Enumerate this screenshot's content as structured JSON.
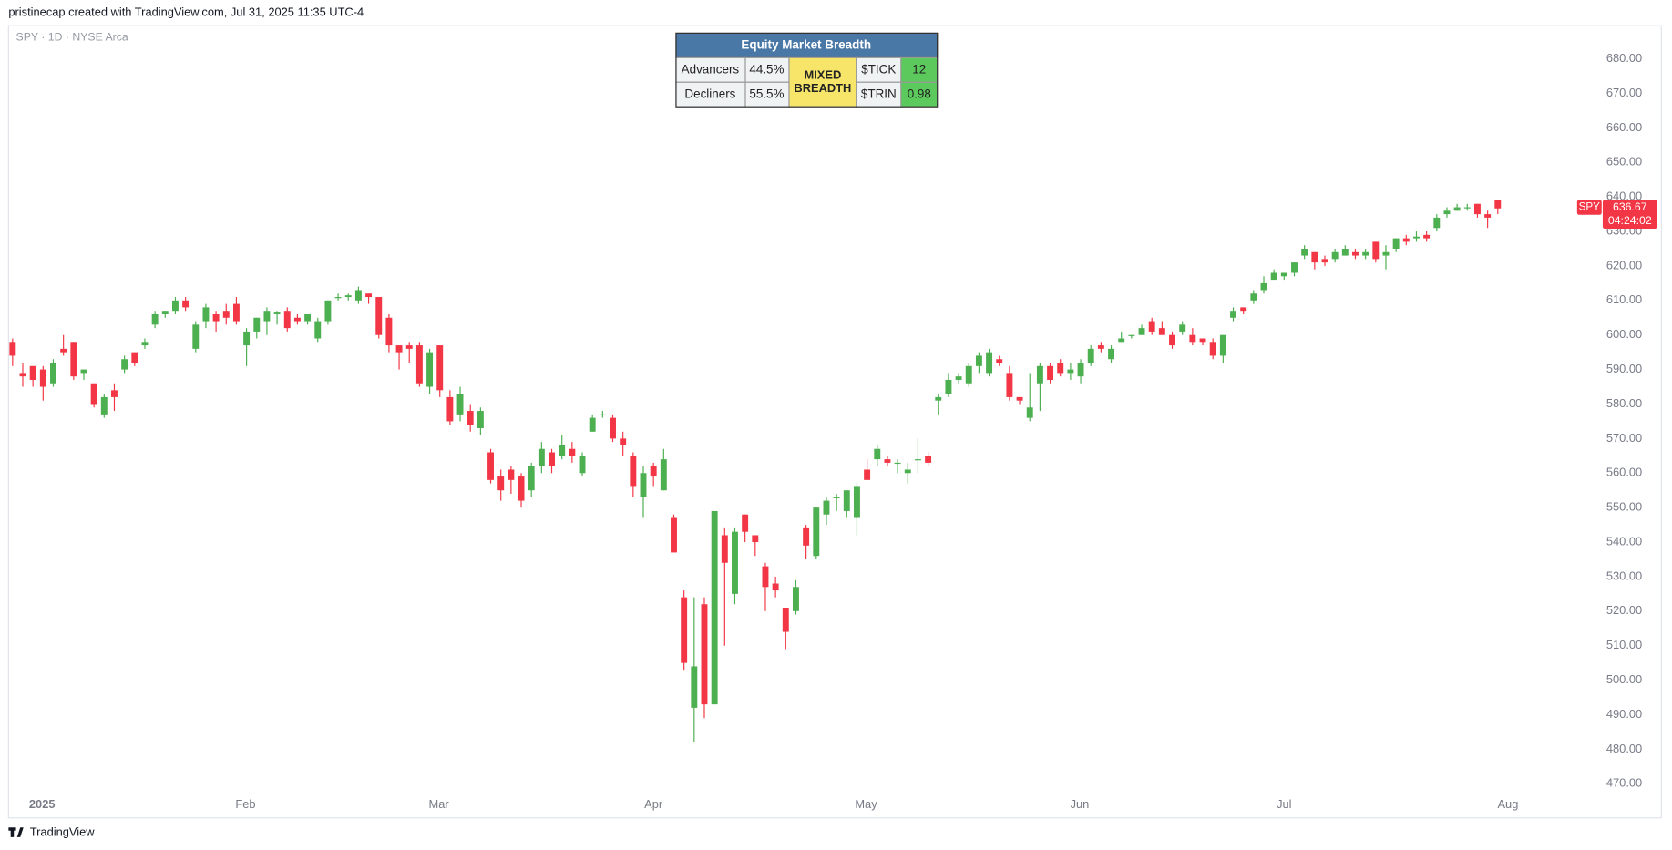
{
  "header": "pristinecap created with TradingView.com, Jul 31, 2025 11:35 UTC-4",
  "footer": "TradingView",
  "chart_data": {
    "type": "candlestick",
    "title": "SPY · 1D · NYSE Arca",
    "series": [
      {
        "name": "SPY",
        "up_color": "#4caf50",
        "down_color": "#f23645",
        "open": [
          598,
          589,
          591,
          590,
          586,
          596,
          598,
          589,
          586,
          577,
          584,
          590,
          595,
          597,
          603,
          606,
          607,
          610,
          596,
          604,
          606,
          607,
          609,
          597,
          601,
          604,
          606,
          607,
          605,
          604,
          599,
          604,
          611,
          611,
          610,
          612,
          611,
          605,
          597,
          597,
          597,
          585,
          597,
          582,
          577,
          578,
          573,
          566,
          559,
          561,
          559,
          555,
          562,
          566,
          565,
          567,
          560,
          572,
          577,
          576,
          570,
          565,
          553,
          562,
          555,
          547,
          524,
          492,
          522,
          493,
          542,
          525,
          548,
          542,
          533,
          528,
          521,
          520,
          544,
          536,
          548,
          553,
          549,
          547,
          561,
          564,
          564,
          563,
          560,
          564,
          565,
          581,
          583,
          587,
          586,
          591,
          589,
          593,
          589,
          582,
          576,
          586,
          591,
          592,
          589,
          588,
          592,
          597,
          593,
          598,
          600,
          600,
          604,
          602,
          600,
          601,
          600,
          599,
          598,
          594,
          605,
          608,
          610,
          613,
          616,
          617,
          618,
          623,
          624,
          622,
          622,
          623,
          624,
          623,
          627,
          623,
          625,
          628,
          628,
          629,
          631,
          635,
          636,
          637,
          638,
          635,
          639
        ],
        "high": [
          599,
          592,
          591,
          591,
          593,
          600,
          598,
          590,
          586,
          583,
          586,
          594,
          595,
          599,
          607,
          607,
          611,
          611,
          604,
          609,
          607,
          609,
          611,
          602,
          605,
          608,
          607,
          608,
          606,
          606,
          605,
          610,
          612,
          612,
          614,
          612,
          611,
          606,
          597,
          598,
          598,
          596,
          597,
          584,
          585,
          580,
          579,
          567,
          561,
          562,
          560,
          563,
          569,
          567,
          571,
          569,
          566,
          577,
          578,
          577,
          572,
          566,
          562,
          563,
          567,
          548,
          526,
          524,
          524,
          549,
          544,
          544,
          548,
          542,
          534,
          530,
          521,
          529,
          545,
          550,
          553,
          554,
          555,
          557,
          564,
          568,
          565,
          564,
          563,
          570,
          566,
          583,
          589,
          589,
          592,
          595,
          596,
          594,
          591,
          582,
          589,
          592,
          592,
          593,
          592,
          593,
          597,
          598,
          597,
          601,
          600,
          603,
          605,
          604,
          601,
          604,
          602,
          599,
          599,
          600,
          608,
          608,
          613,
          617,
          619,
          618,
          621,
          626,
          624,
          623,
          625,
          626,
          625,
          625,
          627,
          626,
          628,
          629,
          630,
          630,
          635,
          637,
          638,
          638,
          638,
          636,
          639
        ],
        "low": [
          591,
          585,
          585,
          581,
          585,
          594,
          587,
          587,
          579,
          576,
          578,
          589,
          591,
          596,
          602,
          605,
          606,
          607,
          595,
          602,
          601,
          603,
          603,
          591,
          599,
          600,
          603,
          601,
          603,
          603,
          598,
          603,
          610,
          610,
          609,
          609,
          599,
          595,
          590,
          592,
          585,
          583,
          582,
          574,
          575,
          572,
          571,
          557,
          552,
          554,
          550,
          553,
          560,
          560,
          564,
          563,
          559,
          572,
          576,
          569,
          565,
          553,
          547,
          556,
          555,
          537,
          503,
          482,
          489,
          493,
          510,
          522,
          540,
          536,
          520,
          524,
          509,
          519,
          535,
          535,
          545,
          549,
          547,
          542,
          558,
          562,
          562,
          560,
          557,
          560,
          562,
          577,
          582,
          586,
          585,
          589,
          588,
          591,
          581,
          580,
          575,
          578,
          586,
          588,
          587,
          586,
          591,
          595,
          592,
          598,
          599,
          600,
          600,
          600,
          596,
          600,
          597,
          597,
          593,
          592,
          604,
          606,
          609,
          612,
          617,
          616,
          617,
          622,
          619,
          620,
          621,
          623,
          622,
          622,
          621,
          619,
          624,
          626,
          627,
          627,
          630,
          634,
          636,
          636,
          634,
          631,
          635
        ],
        "close": [
          594,
          588,
          587,
          585,
          592,
          595,
          588,
          590,
          580,
          582,
          582,
          593,
          592,
          598,
          606,
          607,
          610,
          608,
          603,
          608,
          604,
          605,
          604,
          601,
          605,
          607,
          606.5,
          602,
          604,
          606,
          604,
          610,
          611,
          611.5,
          613,
          611,
          600,
          597,
          595,
          596,
          586,
          595,
          584,
          575,
          583,
          574,
          578,
          558,
          555,
          558,
          552,
          562,
          567,
          562,
          568,
          565,
          565,
          576,
          577,
          570,
          568,
          556,
          560,
          559,
          564,
          537,
          505,
          504,
          493,
          549,
          534,
          543,
          543,
          540,
          527,
          526,
          514,
          527,
          539,
          550,
          552,
          553,
          555,
          556,
          558,
          567,
          563,
          563,
          561,
          564,
          563,
          582,
          587,
          588,
          591,
          594,
          595,
          592,
          582,
          581,
          579,
          591,
          587,
          589,
          590,
          592,
          596,
          596,
          596,
          599,
          600,
          602,
          601,
          600,
          597,
          603,
          598,
          598,
          594,
          600,
          607,
          607,
          612,
          615,
          618,
          618,
          621,
          625,
          621,
          621,
          624,
          625,
          623,
          624,
          622,
          624,
          628,
          627,
          628.5,
          628,
          634,
          636,
          637,
          637,
          635,
          634,
          636.67
        ]
      }
    ],
    "xlim": [
      -0.4,
      156
    ],
    "xticks": [
      {
        "value": 2.9,
        "label": "2025"
      },
      {
        "value": 22.9,
        "label": "Feb"
      },
      {
        "value": 41.9,
        "label": "Mar"
      },
      {
        "value": 63,
        "label": "Apr"
      },
      {
        "value": 83.9,
        "label": "May"
      },
      {
        "value": 104.9,
        "label": "Jun"
      },
      {
        "value": 125,
        "label": "Jul"
      },
      {
        "value": 147,
        "label": "Aug"
      }
    ],
    "ylim": [
      466.9,
      689.6
    ],
    "yticks": [
      {
        "value": 470,
        "label": "470.00"
      },
      {
        "value": 480,
        "label": "480.00"
      },
      {
        "value": 490,
        "label": "490.00"
      },
      {
        "value": 500,
        "label": "500.00"
      },
      {
        "value": 510,
        "label": "510.00"
      },
      {
        "value": 520,
        "label": "520.00"
      },
      {
        "value": 530,
        "label": "530.00"
      },
      {
        "value": 540,
        "label": "540.00"
      },
      {
        "value": 550,
        "label": "550.00"
      },
      {
        "value": 560,
        "label": "560.00"
      },
      {
        "value": 570,
        "label": "570.00"
      },
      {
        "value": 580,
        "label": "580.00"
      },
      {
        "value": 590,
        "label": "590.00"
      },
      {
        "value": 600,
        "label": "600.00"
      },
      {
        "value": 610,
        "label": "610.00"
      },
      {
        "value": 620,
        "label": "620.00"
      },
      {
        "value": 630,
        "label": "630.00"
      },
      {
        "value": 640,
        "label": "640.00"
      },
      {
        "value": 650,
        "label": "650.00"
      },
      {
        "value": 660,
        "label": "660.00"
      },
      {
        "value": 670,
        "label": "670.00"
      },
      {
        "value": 680,
        "label": "680.00"
      }
    ],
    "grid": false,
    "last_price": {
      "symbol": "SPY",
      "value": 636.67,
      "countdown": "04:24:02",
      "color": "#f23645"
    }
  },
  "table": {
    "title": "Equity Market Breadth",
    "rows": [
      [
        "Advancers",
        "44.5%",
        "$TICK",
        "12"
      ],
      [
        "Decliners",
        "55.5%",
        "$TRIN",
        "0.98"
      ]
    ],
    "status": "MIXED BREADTH"
  }
}
